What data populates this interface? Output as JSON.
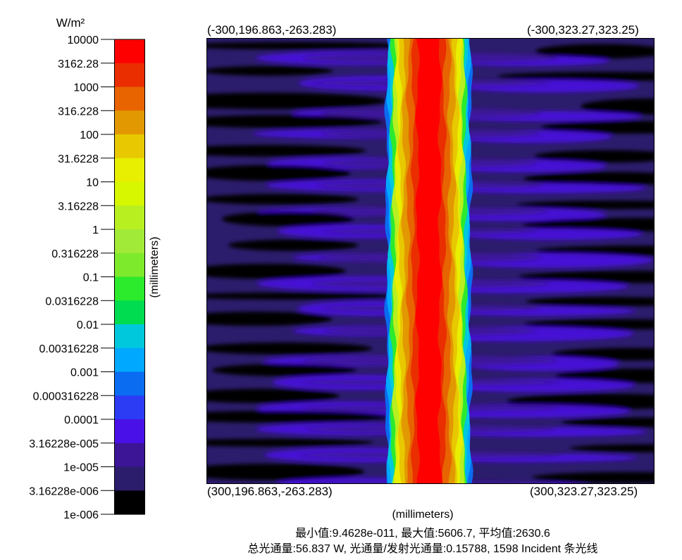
{
  "chart_data": {
    "type": "heatmap",
    "colorbar": {
      "unit": "W/m²",
      "scale": "log",
      "ticks": [
        "10000",
        "3162.28",
        "1000",
        "316.228",
        "100",
        "31.6228",
        "10",
        "3.16228",
        "1",
        "0.316228",
        "0.1",
        "0.0316228",
        "0.01",
        "0.00316228",
        "0.001",
        "0.000316228",
        "0.0001",
        "3.16228e-005",
        "1e-005",
        "3.16228e-006",
        "1e-006"
      ],
      "band_colors": [
        "#ff0000",
        "#ea2e00",
        "#e86400",
        "#e29800",
        "#e8c800",
        "#e8ef00",
        "#d6f700",
        "#b8ef20",
        "#a2ea38",
        "#7eea2c",
        "#2cea2c",
        "#00dc50",
        "#00c8dc",
        "#00a8ff",
        "#0a6cf0",
        "#2c3cf4",
        "#4a10e8",
        "#3c1496",
        "#2c1c6c",
        "#000000"
      ]
    },
    "corners": {
      "top_left": "(-300,196.863,-263.283)",
      "top_right": "(-300,323.27,323.25)",
      "bottom_left": "(300,196.863,-263.283)",
      "bottom_right": "(300,323.27,323.25)"
    },
    "xlabel": "(millimeters)",
    "ylabel": "(millimeters)",
    "stats": {
      "line1": "最小值:9.4628e-011, 最大值:5606.7, 平均值:2630.6",
      "line2": "总光通量:56.837 W, 光通量/发射光通量:0.15788, 1598 Incident 条光线"
    },
    "profile": {
      "center_fraction": 0.496,
      "plateau_halfwidth": 0.025,
      "levels": [
        {
          "halfwidth": 0.035,
          "color": "#ea2e00"
        },
        {
          "halfwidth": 0.046,
          "color": "#e86400"
        },
        {
          "halfwidth": 0.056,
          "color": "#e29800"
        },
        {
          "halfwidth": 0.064,
          "color": "#e8c800"
        },
        {
          "halfwidth": 0.071,
          "color": "#e8ef00"
        },
        {
          "halfwidth": 0.077,
          "color": "#b8ef20"
        },
        {
          "halfwidth": 0.082,
          "color": "#2cea2c"
        },
        {
          "halfwidth": 0.086,
          "color": "#00c8dc"
        },
        {
          "halfwidth": 0.09,
          "color": "#00a8ff"
        },
        {
          "halfwidth": 0.094,
          "color": "#0a6cf0"
        }
      ],
      "peak_color": "#ff0000"
    }
  }
}
